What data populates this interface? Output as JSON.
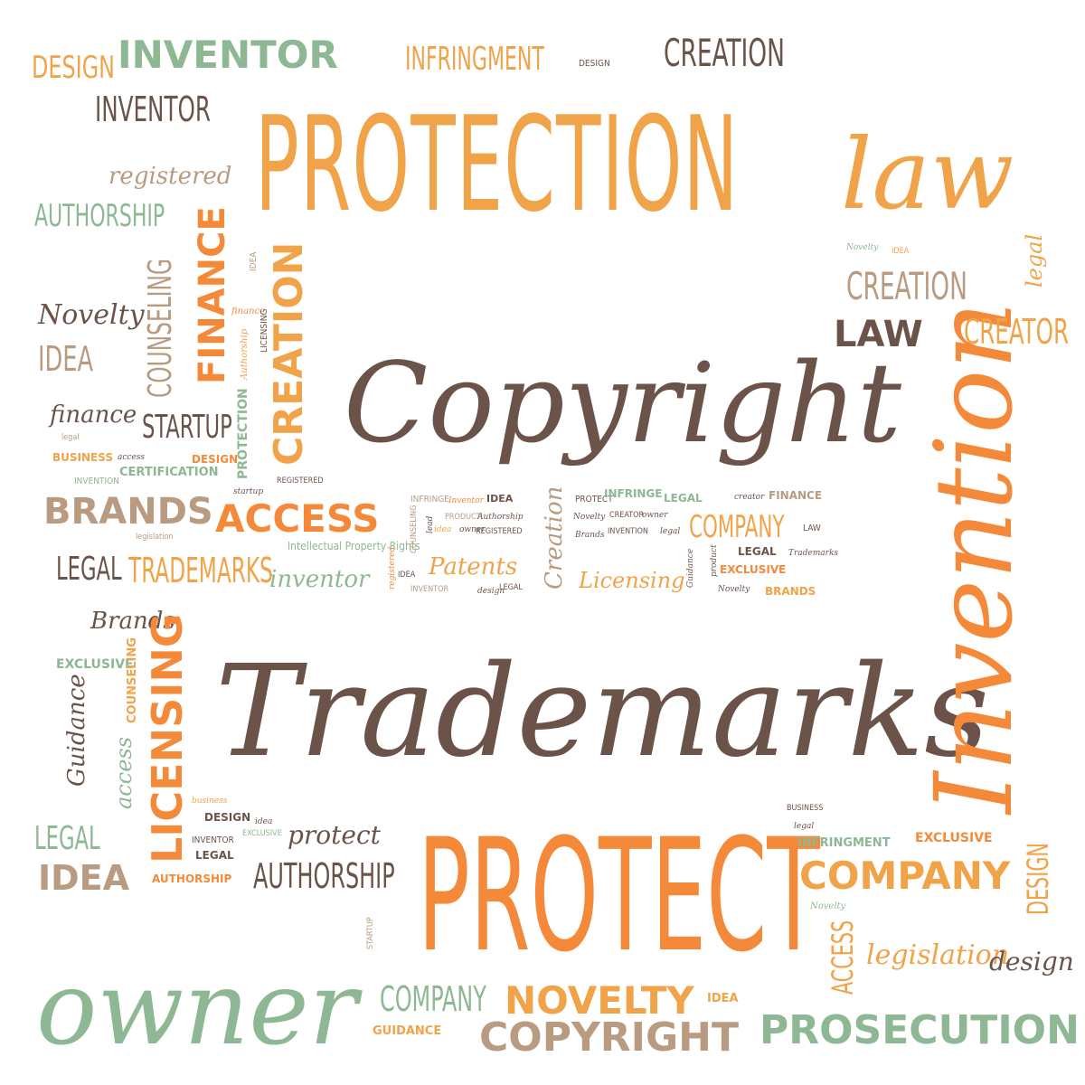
{
  "colors": {
    "orange": "#f0a349",
    "deep_orange": "#f5893a",
    "brown": "#6b534a",
    "green": "#8db893",
    "tan": "#b89b80",
    "background": "#ffffff"
  },
  "words": {
    "copyright_main": "Copyright",
    "trademarks_main": "Trademarks",
    "protection": "PROTECTION",
    "protect_big": "PROTECT",
    "invention": "Invention",
    "owner": "owner",
    "law_script": "law",
    "inventor_top": "INVENTOR",
    "design_tl": "DESIGN",
    "inventor_2": "INVENTOR",
    "infringment_top": "INFRINGMENT",
    "design_tiny_top": "DESIGN",
    "creation_top": "CREATION",
    "registered": "registered",
    "authorship_left": "AUTHORSHIP",
    "novelty_left": "Novelty",
    "idea_left": "IDEA",
    "finance_left": "finance",
    "startup_left": "STARTUP",
    "business_left": "BUSINESS",
    "access_tiny": "access",
    "design_small": "DESIGN",
    "certification": "CERTIFICATION",
    "protection_vert": "PROTECTION",
    "creation_vert": "CREATION",
    "finance_vert": "FINANCE",
    "counseling_vert": "COUNSELING",
    "idea_tiny_vert": "IDEA",
    "finance_tiny": "finance",
    "authorship_tiny": "Authorship",
    "licensing_tiny": "LICENSING",
    "invention_tiny": "INVENTION",
    "registered_tiny": "REGISTERED",
    "startup_tiny": "startup",
    "legal_tiny": "legal",
    "legislation_tiny": "legislation",
    "brands_big": "BRANDS",
    "access_big": "ACCESS",
    "ipr": "Intellectual Property Rights",
    "legal_left": "LEGAL",
    "trademarks_mid": "TRADEMARKS",
    "inventor_script": "inventor",
    "brands_script": "Brands",
    "exclusive_left": "EXCLUSIVE",
    "counseling_small_vert": "COUNSELING",
    "licensing_vert": "LICENSING",
    "guidance_vert": "Guidance",
    "access_vert": "access",
    "legal_l2": "LEGAL",
    "idea_big": "IDEA",
    "business_tiny": "business",
    "design_mid": "DESIGN",
    "idea_mid": "idea",
    "inventor_tiny": "INVENTOR",
    "exclusive_tiny": "EXCLUSIVE",
    "legal_mid": "LEGAL",
    "authorship_bold": "AUTHORSHIP",
    "protect_script": "protect",
    "authorship_mid": "AUTHORSHIP",
    "infringe_1": "INFRINGE",
    "inventor_tiny2": "Inventor",
    "idea_bold_tiny": "IDEA",
    "infringe_green": "INFRINGE",
    "legal_green": "LEGAL",
    "creator_tiny": "creator",
    "finance_bold": "FINANCE",
    "idea_t": "idea",
    "product_tiny": "PRODUCT",
    "authorship_t2": "Authorship",
    "owner_tiny": "owner",
    "registered_t2": "REGISTERED",
    "protect_tiny": "PROTECT",
    "novelty_tiny": "Novelty",
    "brands_tiny": "Brands",
    "creator_t2": "CREATOR",
    "owner_t2": "owner",
    "invention_t2": "INVENTION",
    "legal_t2": "legal",
    "company_mid": "COMPANY",
    "law_tiny": "LAW",
    "legal_bold_tiny": "LEGAL",
    "trademarks_tiny": "Trademarks",
    "exclusive_mid": "EXCLUSIVE",
    "guidance_tiny": "Guidance",
    "product_t2": "product",
    "novelty_t2": "Novelty",
    "brands_bold_tiny": "BRANDS",
    "counseling_tiny_vert": "COUNSELING",
    "lead_tiny": "lead",
    "registered_vert": "registered",
    "idea_t3": "IDEA",
    "inventor_t3": "INVENTOR",
    "patents": "Patents",
    "design_t": "design",
    "legal_t3": "LEGAL",
    "creation_vert2": "Creation",
    "licensing_script": "Licensing",
    "novelty_right": "Novelty",
    "idea_right_tiny": "IDEA",
    "legal_right_vert": "legal",
    "creation_right": "CREATION",
    "law_right": "LAW",
    "creator_right": "CREATOR",
    "business_br": "BUSINESS",
    "legal_br": "legal",
    "infringment_br": "INFRINGMENT",
    "exclusive_br": "EXCLUSIVE",
    "design_br_vert": "DESIGN",
    "company_big": "COMPANY",
    "novelty_br": "Novelty",
    "access_br_vert": "ACCESS",
    "legislation_br": "legislation",
    "design_script_br": "design",
    "startup_vert_tiny": "STARTUP",
    "company_bottom": "COMPANY",
    "novelty_big": "NOVELTY",
    "idea_bottom": "IDEA",
    "guidance_bottom": "GUIDANCE",
    "copyright_bottom": "COPYRIGHT",
    "prosecution": "PROSECUTION"
  }
}
